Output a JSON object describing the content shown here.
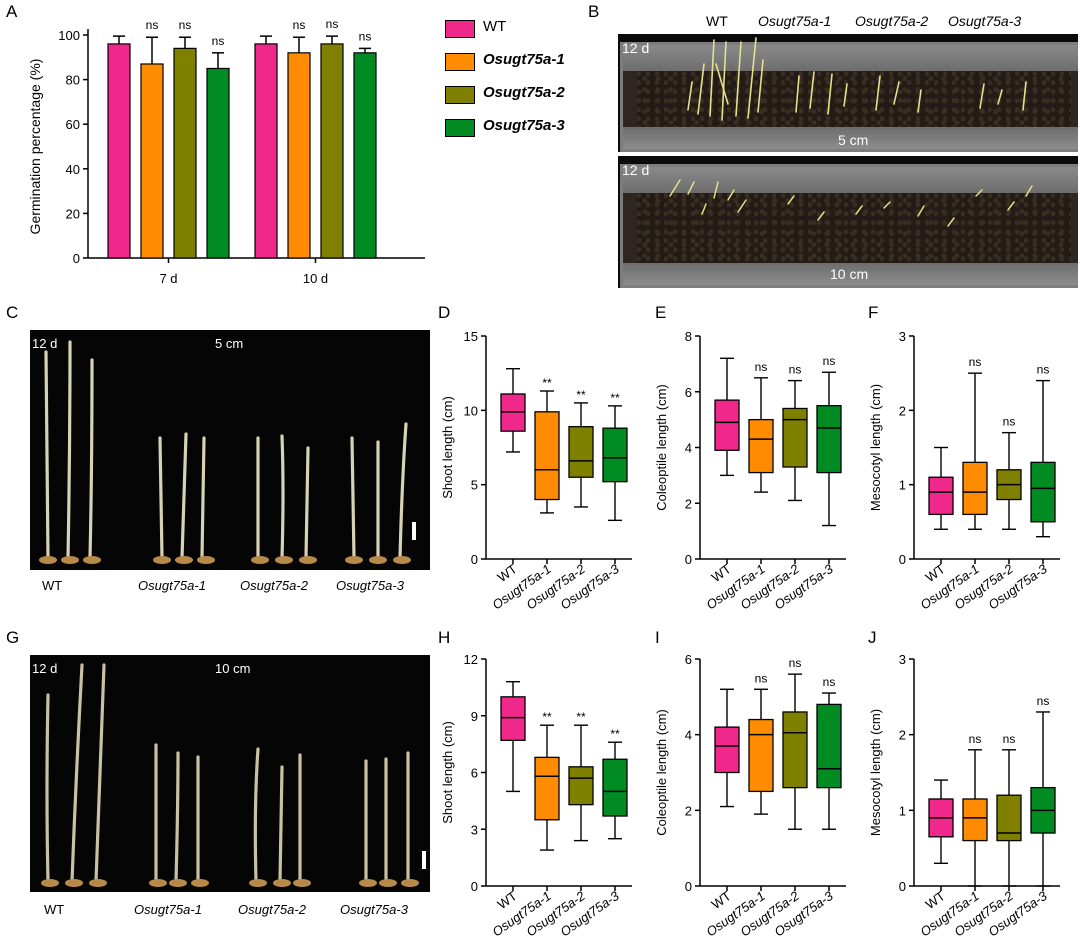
{
  "colors": {
    "WT": "#f0288c",
    "g1": "#ff8c00",
    "g2": "#808000",
    "g3": "#008c23"
  },
  "legend": [
    "WT",
    "Osugt75a-1",
    "Osugt75a-2",
    "Osugt75a-3"
  ],
  "panels": {
    "A": "A",
    "B": "B",
    "C": "C",
    "D": "D",
    "E": "E",
    "F": "F",
    "G": "G",
    "H": "H",
    "I": "I",
    "J": "J"
  },
  "photos": {
    "B": {
      "genotypes": [
        "WT",
        "Osugt75a-1",
        "Osugt75a-2",
        "Osugt75a-3"
      ],
      "top_day": "12 d",
      "top_depth": "5 cm",
      "bottom_day": "12 d",
      "bottom_depth": "10 cm"
    },
    "C": {
      "day": "12 d",
      "depth": "5 cm",
      "labels": [
        "WT",
        "Osugt75a-1",
        "Osugt75a-2",
        "Osugt75a-3"
      ]
    },
    "G": {
      "day": "12 d",
      "depth": "10 cm",
      "labels": [
        "WT",
        "Osugt75a-1",
        "Osugt75a-2",
        "Osugt75a-3"
      ]
    }
  },
  "chart_data": [
    {
      "id": "A",
      "type": "bar",
      "ylabel": "Germination percentage (%)",
      "categories": [
        "7 d",
        "10 d"
      ],
      "yticks": [
        0,
        20,
        40,
        60,
        80,
        100
      ],
      "ylim": [
        0,
        100
      ],
      "series": [
        {
          "name": "WT",
          "values": [
            96,
            96
          ],
          "err": [
            3.5,
            3.5
          ],
          "sig": [
            "",
            ""
          ]
        },
        {
          "name": "Osugt75a-1",
          "values": [
            87,
            92
          ],
          "err": [
            12,
            7
          ],
          "sig": [
            "ns",
            "ns"
          ]
        },
        {
          "name": "Osugt75a-2",
          "values": [
            94,
            96
          ],
          "err": [
            5,
            3.5
          ],
          "sig": [
            "ns",
            "ns"
          ]
        },
        {
          "name": "Osugt75a-3",
          "values": [
            85,
            92
          ],
          "err": [
            7,
            2
          ],
          "sig": [
            "ns",
            "ns"
          ]
        }
      ]
    },
    {
      "id": "D",
      "type": "box",
      "ylabel": "Shoot length (cm)",
      "categories": [
        "WT",
        "Osugt75a-1",
        "Osugt75a-2",
        "Osugt75a-3"
      ],
      "yticks": [
        0,
        5,
        10,
        15
      ],
      "ylim": [
        0,
        15
      ],
      "boxes": [
        {
          "min": 7.2,
          "q1": 8.6,
          "median": 9.9,
          "q3": 11.1,
          "max": 12.8,
          "sig": ""
        },
        {
          "min": 3.1,
          "q1": 4.0,
          "median": 6.0,
          "q3": 9.9,
          "max": 11.3,
          "sig": "**"
        },
        {
          "min": 3.5,
          "q1": 5.5,
          "median": 6.6,
          "q3": 8.9,
          "max": 10.5,
          "sig": "**"
        },
        {
          "min": 2.6,
          "q1": 5.2,
          "median": 6.8,
          "q3": 8.8,
          "max": 10.3,
          "sig": "**"
        }
      ]
    },
    {
      "id": "E",
      "type": "box",
      "ylabel": "Coleoptile length (cm)",
      "categories": [
        "WT",
        "Osugt75a-1",
        "Osugt75a-2",
        "Osugt75a-3"
      ],
      "yticks": [
        0,
        2,
        4,
        6,
        8
      ],
      "ylim": [
        0,
        8
      ],
      "boxes": [
        {
          "min": 3.0,
          "q1": 3.9,
          "median": 4.9,
          "q3": 5.7,
          "max": 7.2,
          "sig": ""
        },
        {
          "min": 2.4,
          "q1": 3.1,
          "median": 4.3,
          "q3": 5.0,
          "max": 6.5,
          "sig": "ns"
        },
        {
          "min": 2.1,
          "q1": 3.3,
          "median": 5.0,
          "q3": 5.4,
          "max": 6.4,
          "sig": "ns"
        },
        {
          "min": 1.2,
          "q1": 3.1,
          "median": 4.7,
          "q3": 5.5,
          "max": 6.7,
          "sig": "ns"
        }
      ]
    },
    {
      "id": "F",
      "type": "box",
      "ylabel": "Mesocotyl length (cm)",
      "categories": [
        "WT",
        "Osugt75a-1",
        "Osugt75a-2",
        "Osugt75a-3"
      ],
      "yticks": [
        0,
        1,
        2,
        3
      ],
      "ylim": [
        0,
        3
      ],
      "boxes": [
        {
          "min": 0.4,
          "q1": 0.6,
          "median": 0.9,
          "q3": 1.1,
          "max": 1.5,
          "sig": ""
        },
        {
          "min": 0.4,
          "q1": 0.6,
          "median": 0.9,
          "q3": 1.3,
          "max": 2.5,
          "sig": "ns"
        },
        {
          "min": 0.4,
          "q1": 0.8,
          "median": 1.0,
          "q3": 1.2,
          "max": 1.7,
          "sig": "ns"
        },
        {
          "min": 0.3,
          "q1": 0.5,
          "median": 0.95,
          "q3": 1.3,
          "max": 2.4,
          "sig": "ns"
        }
      ]
    },
    {
      "id": "H",
      "type": "box",
      "ylabel": "Shoot length (cm)",
      "categories": [
        "WT",
        "Osugt75a-1",
        "Osugt75a-2",
        "Osugt75a-3"
      ],
      "yticks": [
        0,
        3,
        6,
        9,
        12
      ],
      "ylim": [
        0,
        12
      ],
      "boxes": [
        {
          "min": 5.0,
          "q1": 7.7,
          "median": 8.9,
          "q3": 10.0,
          "max": 10.8,
          "sig": ""
        },
        {
          "min": 1.9,
          "q1": 3.5,
          "median": 5.8,
          "q3": 6.8,
          "max": 8.5,
          "sig": "**"
        },
        {
          "min": 2.4,
          "q1": 4.3,
          "median": 5.7,
          "q3": 6.3,
          "max": 8.5,
          "sig": "**"
        },
        {
          "min": 2.5,
          "q1": 3.7,
          "median": 5.0,
          "q3": 6.7,
          "max": 7.6,
          "sig": "**"
        }
      ]
    },
    {
      "id": "I",
      "type": "box",
      "ylabel": "Coleoptile length (cm)",
      "categories": [
        "WT",
        "Osugt75a-1",
        "Osugt75a-2",
        "Osugt75a-3"
      ],
      "yticks": [
        0,
        2,
        4,
        6
      ],
      "ylim": [
        0,
        6
      ],
      "boxes": [
        {
          "min": 2.1,
          "q1": 3.0,
          "median": 3.7,
          "q3": 4.2,
          "max": 5.2,
          "sig": ""
        },
        {
          "min": 1.9,
          "q1": 2.5,
          "median": 4.0,
          "q3": 4.4,
          "max": 5.2,
          "sig": "ns"
        },
        {
          "min": 1.5,
          "q1": 2.6,
          "median": 4.05,
          "q3": 4.6,
          "max": 5.6,
          "sig": "ns"
        },
        {
          "min": 1.5,
          "q1": 2.6,
          "median": 3.1,
          "q3": 4.8,
          "max": 5.1,
          "sig": "ns"
        }
      ]
    },
    {
      "id": "J",
      "type": "box",
      "ylabel": "Mesocotyl length (cm)",
      "categories": [
        "WT",
        "Osugt75a-1",
        "Osugt75a-2",
        "Osugt75a-3"
      ],
      "yticks": [
        0,
        1,
        2,
        3
      ],
      "ylim": [
        0,
        3
      ],
      "boxes": [
        {
          "min": 0.3,
          "q1": 0.65,
          "median": 0.9,
          "q3": 1.15,
          "max": 1.4,
          "sig": ""
        },
        {
          "min": 0.0,
          "q1": 0.6,
          "median": 0.9,
          "q3": 1.15,
          "max": 1.8,
          "sig": "ns"
        },
        {
          "min": 0.0,
          "q1": 0.6,
          "median": 0.7,
          "q3": 1.2,
          "max": 1.8,
          "sig": "ns"
        },
        {
          "min": 0.0,
          "q1": 0.7,
          "median": 1.0,
          "q3": 1.3,
          "max": 2.3,
          "sig": "ns"
        }
      ]
    }
  ]
}
